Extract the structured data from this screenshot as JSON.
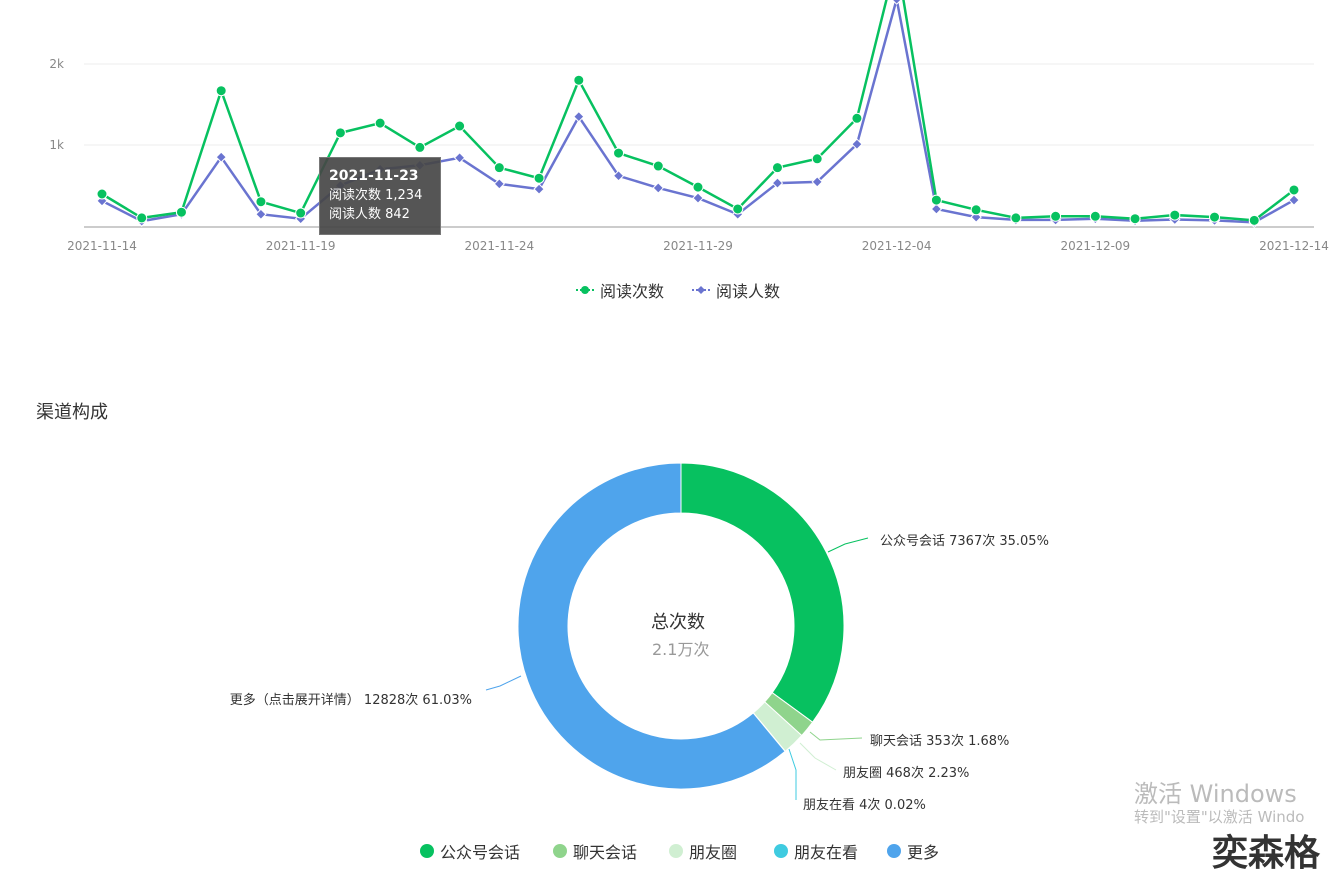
{
  "chart_data": [
    {
      "type": "line",
      "x": [
        "2021-11-14",
        "2021-11-15",
        "2021-11-16",
        "2021-11-17",
        "2021-11-18",
        "2021-11-19",
        "2021-11-20",
        "2021-11-21",
        "2021-11-22",
        "2021-11-23",
        "2021-11-24",
        "2021-11-25",
        "2021-11-26",
        "2021-11-27",
        "2021-11-28",
        "2021-11-29",
        "2021-11-30",
        "2021-12-01",
        "2021-12-02",
        "2021-12-03",
        "2021-12-04",
        "2021-12-05",
        "2021-12-06",
        "2021-12-07",
        "2021-12-08",
        "2021-12-09",
        "2021-12-10",
        "2021-12-11",
        "2021-12-12",
        "2021-12-13",
        "2021-12-14"
      ],
      "xticks": [
        "2021-11-14",
        "2021-11-19",
        "2021-11-24",
        "2021-11-29",
        "2021-12-04",
        "2021-12-09",
        "2021-12-14"
      ],
      "yticks": [
        "1k",
        "2k"
      ],
      "grid": true,
      "legend": "bottom",
      "series": [
        {
          "name": "阅读次数",
          "color": "#07c160",
          "marker": "circle",
          "values": [
            395,
            100,
            170,
            1670,
            300,
            160,
            1150,
            1270,
            970,
            1234,
            720,
            590,
            1800,
            900,
            740,
            480,
            210,
            720,
            830,
            1330,
            3300,
            320,
            200,
            100,
            120,
            120,
            90,
            135,
            110,
            70,
            445
          ]
        },
        {
          "name": "阅读人数",
          "color": "#6a74d0",
          "marker": "diamond",
          "values": [
            310,
            60,
            145,
            850,
            145,
            90,
            500,
            700,
            750,
            842,
            520,
            455,
            1350,
            620,
            470,
            345,
            145,
            530,
            545,
            1010,
            2800,
            210,
            110,
            75,
            75,
            90,
            65,
            80,
            70,
            45,
            320
          ]
        }
      ],
      "tooltip": {
        "date": "2021-11-23",
        "line1": "阅读次数 1,234",
        "line2": "阅读人数 842"
      }
    },
    {
      "type": "pie",
      "title": "渠道构成",
      "center_title": "总次数",
      "center_value": "2.1万次",
      "legend": "bottom",
      "slices": [
        {
          "name": "公众号会话",
          "value": 7367,
          "percent": 35.05,
          "label": "公众号会话 7367次 35.05%",
          "color": "#07c160"
        },
        {
          "name": "聊天会话",
          "value": 353,
          "percent": 1.68,
          "label": "聊天会话 353次 1.68%",
          "color": "#8fd48c"
        },
        {
          "name": "朋友圈",
          "value": 468,
          "percent": 2.23,
          "label": "朋友圈 468次 2.23%",
          "color": "#d0efd2"
        },
        {
          "name": "朋友在看",
          "value": 4,
          "percent": 0.02,
          "label": "朋友在看 4次 0.02%",
          "color": "#3fcbe0"
        },
        {
          "name": "更多",
          "value": 12828,
          "percent": 61.03,
          "label": "更多（点击展开详情） 12828次 61.03%",
          "color": "#4fa4ec"
        }
      ]
    }
  ],
  "watermark": {
    "line1": "激活 Windows",
    "line2": "转到\"设置\"以激活 Windo"
  },
  "logo": "奕森格"
}
